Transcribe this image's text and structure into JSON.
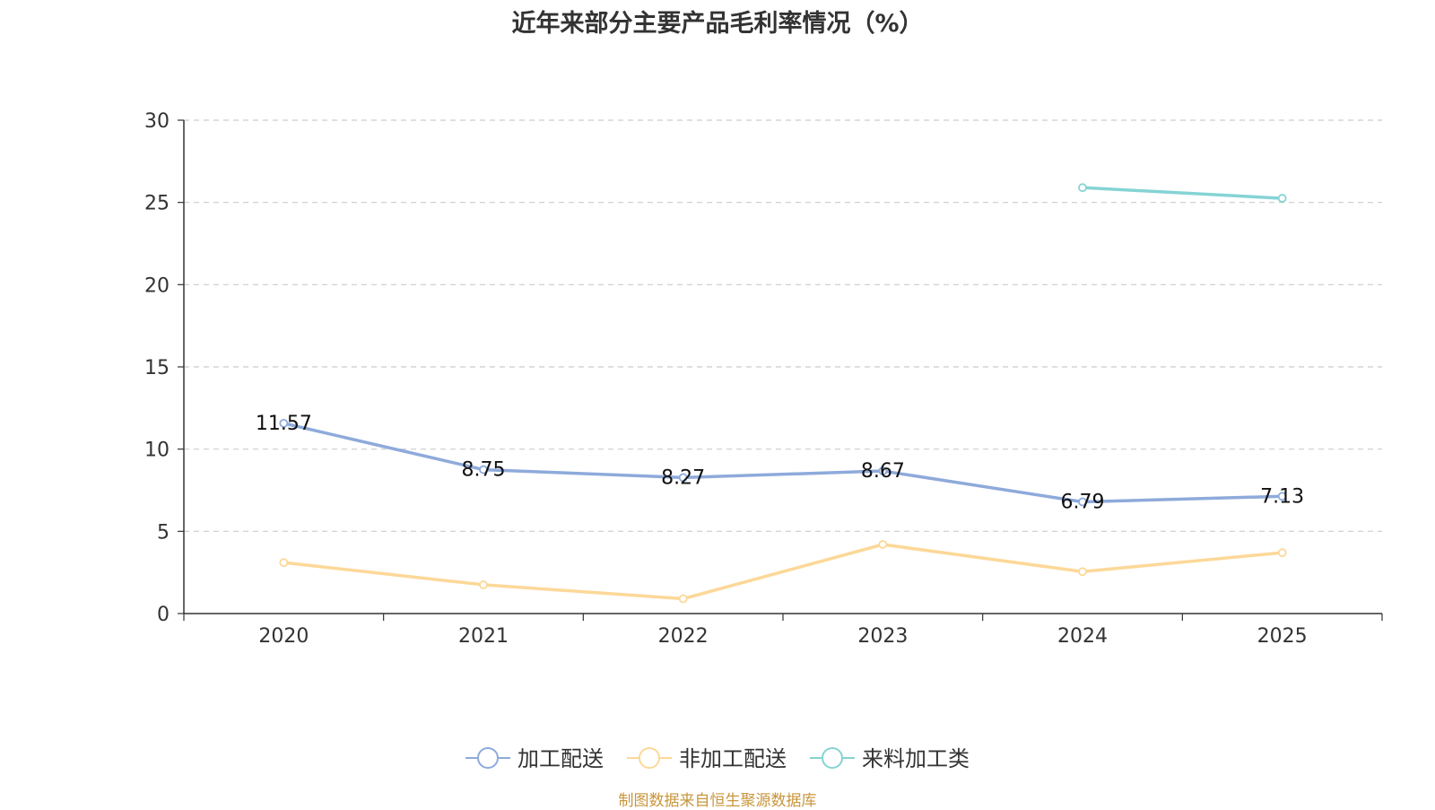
{
  "chart_data": {
    "type": "line",
    "title": "近年来部分主要产品毛利率情况（%）",
    "categories": [
      "2020",
      "2021",
      "2022",
      "2023",
      "2024",
      "2025"
    ],
    "ylim": [
      0,
      30
    ],
    "yticks": [
      0,
      5,
      10,
      15,
      20,
      25,
      30
    ],
    "grid": true,
    "legend_position": "bottom",
    "series": [
      {
        "name": "加工配送",
        "color": "#8eaadb",
        "values": [
          11.57,
          8.75,
          8.27,
          8.67,
          6.79,
          7.13
        ],
        "show_labels": true
      },
      {
        "name": "非加工配送",
        "color": "#fcd898",
        "values": [
          3.1,
          1.75,
          0.9,
          4.2,
          2.55,
          3.7
        ],
        "show_labels": false
      },
      {
        "name": "来料加工类",
        "color": "#85d3d5",
        "values": [
          null,
          null,
          null,
          null,
          25.9,
          25.25
        ],
        "show_labels": false
      }
    ]
  },
  "footer": {
    "source": "制图数据来自恒生聚源数据库"
  }
}
